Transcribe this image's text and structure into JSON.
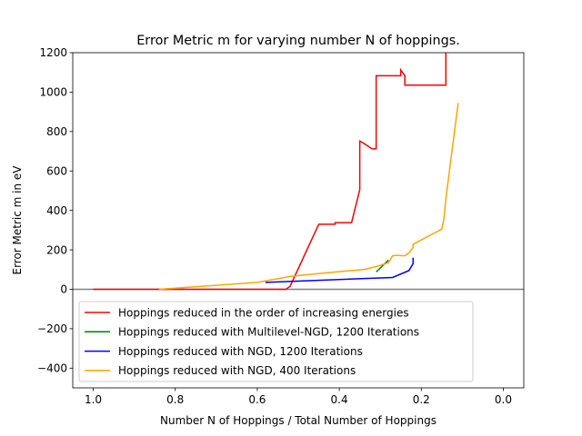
{
  "chart_data": {
    "type": "line",
    "title": "Error Metric m for varying number N of hoppings.",
    "xlabel": "Number N of Hoppings / Total Number of Hoppings",
    "ylabel": "Error Metric m in eV",
    "xlim": [
      1.05,
      -0.05
    ],
    "ylim": [
      -500,
      1200
    ],
    "x_reversed": true,
    "grid": false,
    "legend_position": "lower-center",
    "xticks": [
      1.0,
      0.8,
      0.6,
      0.4,
      0.2,
      0.0
    ],
    "xtick_labels": [
      "1.0",
      "0.8",
      "0.6",
      "0.4",
      "0.2",
      "0.0"
    ],
    "yticks": [
      -400,
      -200,
      0,
      200,
      400,
      600,
      800,
      1000,
      1200
    ],
    "ytick_labels": [
      "−400",
      "−200",
      "0",
      "200",
      "400",
      "600",
      "800",
      "1000",
      "1200"
    ],
    "reference_line": {
      "y": 0,
      "color": "#808080"
    },
    "series": [
      {
        "name": "Hoppings reduced in the order of increasing energies",
        "color": "#ff0000",
        "x": [
          1.0,
          0.53,
          0.52,
          0.45,
          0.41,
          0.41,
          0.37,
          0.35,
          0.35,
          0.34,
          0.32,
          0.31,
          0.31,
          0.25,
          0.25,
          0.24,
          0.24,
          0.14,
          0.14
        ],
        "y": [
          0,
          0,
          15,
          330,
          330,
          338,
          338,
          505,
          752,
          740,
          712,
          712,
          1083,
          1083,
          1112,
          1083,
          1035,
          1035,
          1200
        ]
      },
      {
        "name": "Hoppings reduced with Multilevel-NGD, 1200 Iterations",
        "color": "#008000",
        "x": [
          0.31,
          0.28
        ],
        "y": [
          88,
          148
        ]
      },
      {
        "name": "Hoppings reduced with NGD, 1200 Iterations",
        "color": "#0000ff",
        "x": [
          0.58,
          0.27,
          0.23,
          0.22,
          0.22
        ],
        "y": [
          35,
          60,
          95,
          130,
          160
        ]
      },
      {
        "name": "Hoppings reduced with NGD, 400 Iterations",
        "color": "#ffa500",
        "x": [
          0.84,
          0.6,
          0.52,
          0.45,
          0.37,
          0.34,
          0.31,
          0.28,
          0.27,
          0.26,
          0.24,
          0.23,
          0.22,
          0.22,
          0.15,
          0.145,
          0.14,
          0.11
        ],
        "y": [
          0,
          35,
          65,
          80,
          95,
          100,
          115,
          135,
          170,
          172,
          170,
          185,
          212,
          228,
          305,
          355,
          460,
          945
        ]
      }
    ]
  }
}
